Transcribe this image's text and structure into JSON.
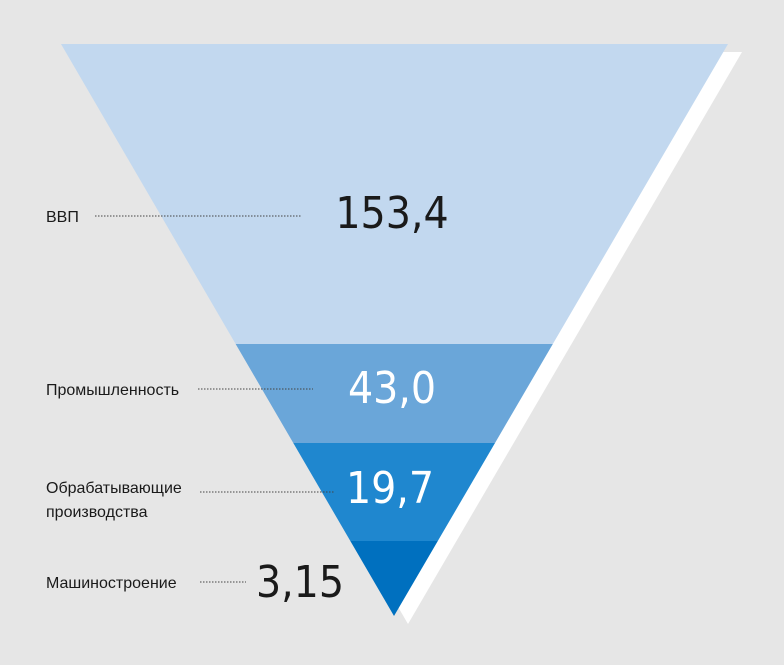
{
  "colors": {
    "background": "#e6e6e6",
    "shadow": "#ffffff",
    "leader": "#444444",
    "label": "#1a1a1a"
  },
  "chart_data": {
    "type": "funnel",
    "levels": [
      {
        "label": "ВВП",
        "value": "153,4",
        "color": "#c2d8ef",
        "value_color": "#1a1a1a"
      },
      {
        "label": "Промышленность",
        "value": "43,0",
        "color": "#6aa6d9",
        "value_color": "#ffffff"
      },
      {
        "label": "Обрабатывающие производства",
        "label_lines": [
          "Обрабатывающие",
          "производства"
        ],
        "value": "19,7",
        "color": "#1f87cf",
        "value_color": "#ffffff"
      },
      {
        "label": "Машиностроение",
        "value": "3,15",
        "color": "#0070bf",
        "value_color": "#1a1a1a"
      }
    ]
  }
}
